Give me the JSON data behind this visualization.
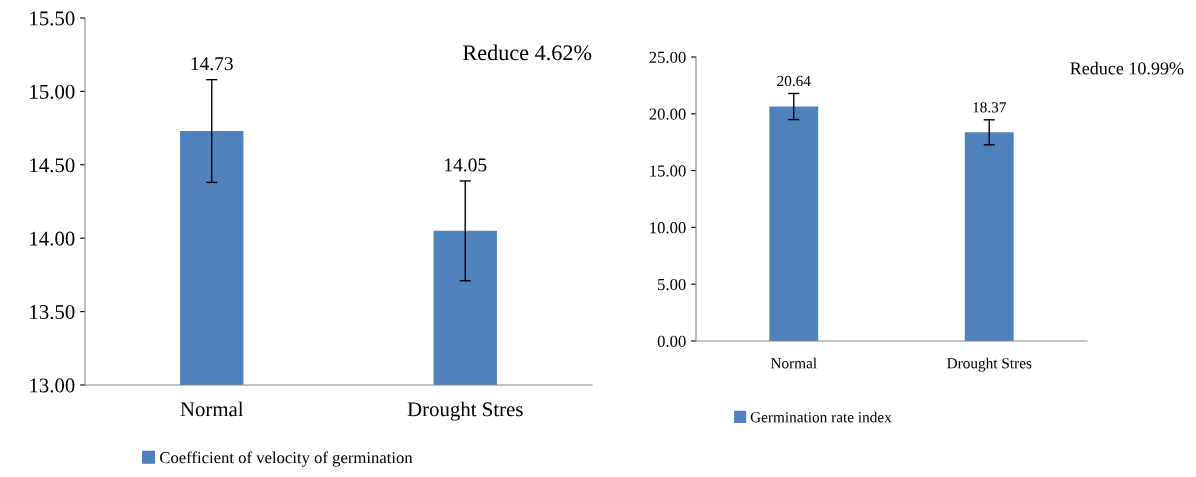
{
  "chart_data": [
    {
      "type": "bar",
      "categories": [
        "Normal",
        "Drought Stres"
      ],
      "series": [
        {
          "name": "Coefficient of velocity of germination",
          "color": "#4f81bd",
          "values": [
            14.73,
            14.05
          ],
          "errors": [
            0.35,
            0.34
          ]
        }
      ],
      "ylim": [
        13,
        15.5
      ],
      "yticks": [
        {
          "value": 13,
          "label": "13.00"
        },
        {
          "value": 13.5,
          "label": "13.50"
        },
        {
          "value": 14,
          "label": "14.00"
        },
        {
          "value": 14.5,
          "label": "14.50"
        },
        {
          "value": 15,
          "label": "15.00"
        },
        {
          "value": 15.5,
          "label": "15.50"
        }
      ],
      "data_labels": true,
      "annotations": [
        "Reduce 4.62%"
      ],
      "legend": "bottom",
      "grid": false
    },
    {
      "type": "bar",
      "categories": [
        "Normal",
        "Drought Stres"
      ],
      "series": [
        {
          "name": "Germination rate index",
          "color": "#4f81bd",
          "values": [
            20.64,
            18.37
          ],
          "errors": [
            1.15,
            1.1
          ]
        }
      ],
      "ylim": [
        0,
        25
      ],
      "yticks": [
        {
          "value": 0,
          "label": "0.00"
        },
        {
          "value": 5,
          "label": "5.00"
        },
        {
          "value": 10,
          "label": "10.00"
        },
        {
          "value": 15,
          "label": "15.00"
        },
        {
          "value": 20,
          "label": "20.00"
        },
        {
          "value": 25,
          "label": "25.00"
        }
      ],
      "data_labels": true,
      "annotations": [
        "Reduce 10.99%"
      ],
      "legend": "bottom",
      "grid": false
    }
  ]
}
